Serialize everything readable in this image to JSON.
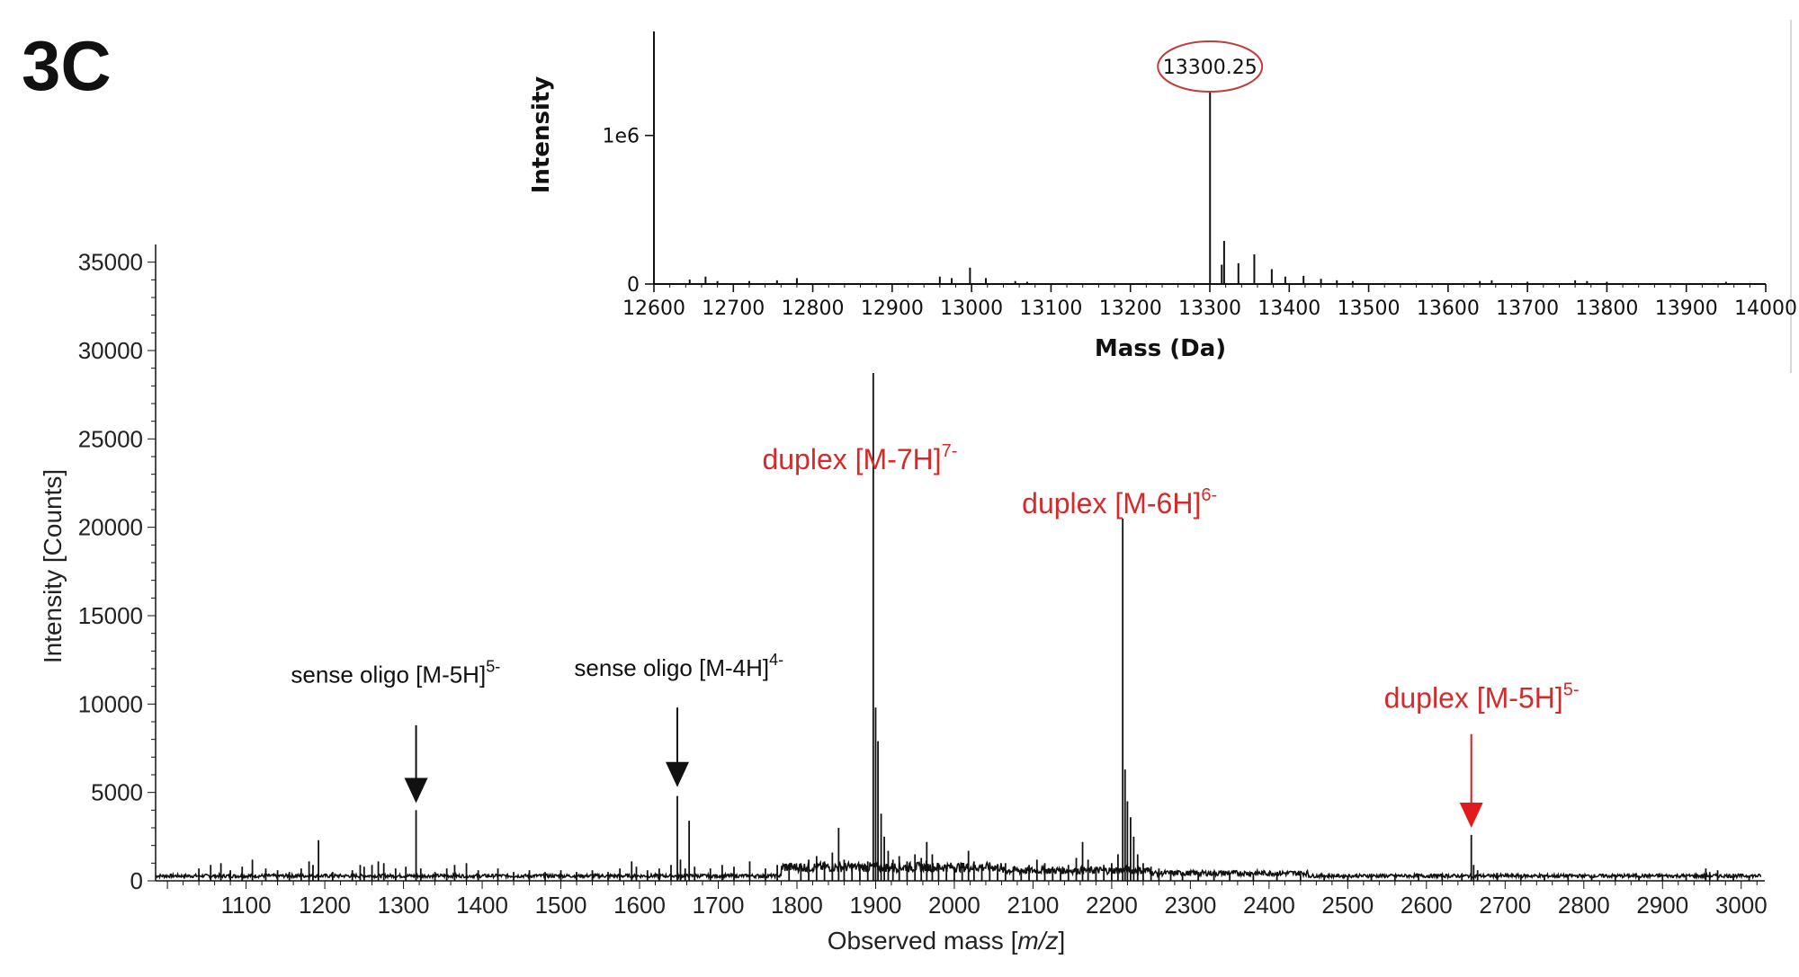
{
  "panel_label": "3C",
  "colors": {
    "annotation_red": "#d62a2a",
    "arrow_red": "#e01b1b",
    "trace": "#111111",
    "axis": "#111111"
  },
  "chart_data": [
    {
      "type": "line",
      "role": "main-spectrum",
      "xlabel": "Observed mass [m/z]",
      "xlabel_plain": "Observed mass [",
      "xlabel_italic": "m/z",
      "xlabel_close": "]",
      "ylabel": "Intensity [Counts]",
      "xlim": [
        985,
        3030
      ],
      "ylim": [
        0,
        36000
      ],
      "x_ticks": [
        1100,
        1200,
        1300,
        1400,
        1500,
        1600,
        1700,
        1800,
        1900,
        2000,
        2100,
        2200,
        2300,
        2400,
        2500,
        2600,
        2700,
        2800,
        2900,
        3000
      ],
      "y_ticks": [
        0,
        5000,
        10000,
        15000,
        20000,
        25000,
        30000,
        35000
      ],
      "grid": false,
      "peaks": [
        {
          "x": 1040,
          "y": 700
        },
        {
          "x": 1055,
          "y": 900
        },
        {
          "x": 1068,
          "y": 1000
        },
        {
          "x": 1080,
          "y": 600
        },
        {
          "x": 1095,
          "y": 800
        },
        {
          "x": 1108,
          "y": 1200
        },
        {
          "x": 1125,
          "y": 700
        },
        {
          "x": 1140,
          "y": 600
        },
        {
          "x": 1155,
          "y": 500
        },
        {
          "x": 1170,
          "y": 700
        },
        {
          "x": 1180,
          "y": 1100
        },
        {
          "x": 1185,
          "y": 900
        },
        {
          "x": 1192,
          "y": 2300
        },
        {
          "x": 1210,
          "y": 500
        },
        {
          "x": 1235,
          "y": 600
        },
        {
          "x": 1245,
          "y": 900
        },
        {
          "x": 1250,
          "y": 800
        },
        {
          "x": 1260,
          "y": 900
        },
        {
          "x": 1268,
          "y": 1100
        },
        {
          "x": 1275,
          "y": 1000
        },
        {
          "x": 1290,
          "y": 700
        },
        {
          "x": 1303,
          "y": 800
        },
        {
          "x": 1316,
          "y": 4000
        },
        {
          "x": 1322,
          "y": 700
        },
        {
          "x": 1340,
          "y": 500
        },
        {
          "x": 1355,
          "y": 700
        },
        {
          "x": 1365,
          "y": 900
        },
        {
          "x": 1380,
          "y": 1000
        },
        {
          "x": 1395,
          "y": 600
        },
        {
          "x": 1420,
          "y": 700
        },
        {
          "x": 1440,
          "y": 500
        },
        {
          "x": 1460,
          "y": 600
        },
        {
          "x": 1480,
          "y": 500
        },
        {
          "x": 1500,
          "y": 600
        },
        {
          "x": 1520,
          "y": 500
        },
        {
          "x": 1540,
          "y": 600
        },
        {
          "x": 1560,
          "y": 500
        },
        {
          "x": 1575,
          "y": 700
        },
        {
          "x": 1590,
          "y": 1100
        },
        {
          "x": 1596,
          "y": 800
        },
        {
          "x": 1610,
          "y": 600
        },
        {
          "x": 1625,
          "y": 700
        },
        {
          "x": 1640,
          "y": 900
        },
        {
          "x": 1648,
          "y": 4800
        },
        {
          "x": 1652,
          "y": 1200
        },
        {
          "x": 1658,
          "y": 700
        },
        {
          "x": 1663,
          "y": 3400
        },
        {
          "x": 1670,
          "y": 800
        },
        {
          "x": 1690,
          "y": 700
        },
        {
          "x": 1705,
          "y": 900
        },
        {
          "x": 1720,
          "y": 800
        },
        {
          "x": 1740,
          "y": 1100
        },
        {
          "x": 1760,
          "y": 700
        },
        {
          "x": 1775,
          "y": 900
        },
        {
          "x": 1790,
          "y": 800
        },
        {
          "x": 1805,
          "y": 1000
        },
        {
          "x": 1815,
          "y": 1200
        },
        {
          "x": 1825,
          "y": 1400
        },
        {
          "x": 1835,
          "y": 1100
        },
        {
          "x": 1845,
          "y": 1600
        },
        {
          "x": 1853,
          "y": 3000
        },
        {
          "x": 1860,
          "y": 1200
        },
        {
          "x": 1870,
          "y": 1000
        },
        {
          "x": 1880,
          "y": 900
        },
        {
          "x": 1890,
          "y": 1100
        },
        {
          "x": 1897,
          "y": 29000
        },
        {
          "x": 1900,
          "y": 9800
        },
        {
          "x": 1903,
          "y": 7900
        },
        {
          "x": 1907,
          "y": 3800
        },
        {
          "x": 1911,
          "y": 2500
        },
        {
          "x": 1916,
          "y": 1700
        },
        {
          "x": 1922,
          "y": 1200
        },
        {
          "x": 1930,
          "y": 1400
        },
        {
          "x": 1940,
          "y": 1100
        },
        {
          "x": 1950,
          "y": 1500
        },
        {
          "x": 1958,
          "y": 1300
        },
        {
          "x": 1965,
          "y": 2200
        },
        {
          "x": 1972,
          "y": 1500
        },
        {
          "x": 1980,
          "y": 1000
        },
        {
          "x": 1990,
          "y": 900
        },
        {
          "x": 2000,
          "y": 800
        },
        {
          "x": 2010,
          "y": 700
        },
        {
          "x": 2018,
          "y": 1700
        },
        {
          "x": 2025,
          "y": 1100
        },
        {
          "x": 2035,
          "y": 900
        },
        {
          "x": 2045,
          "y": 700
        },
        {
          "x": 2055,
          "y": 900
        },
        {
          "x": 2065,
          "y": 1000
        },
        {
          "x": 2075,
          "y": 800
        },
        {
          "x": 2085,
          "y": 700
        },
        {
          "x": 2095,
          "y": 900
        },
        {
          "x": 2105,
          "y": 1200
        },
        {
          "x": 2115,
          "y": 1000
        },
        {
          "x": 2125,
          "y": 800
        },
        {
          "x": 2135,
          "y": 700
        },
        {
          "x": 2145,
          "y": 900
        },
        {
          "x": 2155,
          "y": 1300
        },
        {
          "x": 2163,
          "y": 2200
        },
        {
          "x": 2170,
          "y": 1200
        },
        {
          "x": 2180,
          "y": 800
        },
        {
          "x": 2190,
          "y": 900
        },
        {
          "x": 2200,
          "y": 1000
        },
        {
          "x": 2208,
          "y": 1500
        },
        {
          "x": 2214,
          "y": 20500
        },
        {
          "x": 2217,
          "y": 6300
        },
        {
          "x": 2220,
          "y": 4500
        },
        {
          "x": 2224,
          "y": 3600
        },
        {
          "x": 2228,
          "y": 2500
        },
        {
          "x": 2233,
          "y": 1500
        },
        {
          "x": 2240,
          "y": 1000
        },
        {
          "x": 2250,
          "y": 800
        },
        {
          "x": 2260,
          "y": 700
        },
        {
          "x": 2275,
          "y": 600
        },
        {
          "x": 2290,
          "y": 500
        },
        {
          "x": 2310,
          "y": 500
        },
        {
          "x": 2330,
          "y": 400
        },
        {
          "x": 2350,
          "y": 450
        },
        {
          "x": 2380,
          "y": 400
        },
        {
          "x": 2410,
          "y": 350
        },
        {
          "x": 2440,
          "y": 400
        },
        {
          "x": 2470,
          "y": 350
        },
        {
          "x": 2500,
          "y": 300
        },
        {
          "x": 2530,
          "y": 400
        },
        {
          "x": 2560,
          "y": 350
        },
        {
          "x": 2590,
          "y": 400
        },
        {
          "x": 2620,
          "y": 350
        },
        {
          "x": 2645,
          "y": 400
        },
        {
          "x": 2657,
          "y": 2600
        },
        {
          "x": 2660,
          "y": 900
        },
        {
          "x": 2665,
          "y": 600
        },
        {
          "x": 2690,
          "y": 450
        },
        {
          "x": 2720,
          "y": 350
        },
        {
          "x": 2750,
          "y": 300
        },
        {
          "x": 2780,
          "y": 350
        },
        {
          "x": 2810,
          "y": 300
        },
        {
          "x": 2840,
          "y": 350
        },
        {
          "x": 2870,
          "y": 300
        },
        {
          "x": 2900,
          "y": 350
        },
        {
          "x": 2930,
          "y": 300
        },
        {
          "x": 2955,
          "y": 700
        },
        {
          "x": 2960,
          "y": 500
        },
        {
          "x": 2970,
          "y": 600
        },
        {
          "x": 2990,
          "y": 400
        },
        {
          "x": 3010,
          "y": 300
        }
      ],
      "annotations": [
        {
          "text": "sense oligo [M-5H]",
          "sup": "5-",
          "color": "black",
          "arrow": "black",
          "arrow_x": 1316,
          "arrow_y_top": 8800,
          "arrow_y_tip": 4400,
          "text_x": 1290,
          "text_y": 11200
        },
        {
          "text": "sense oligo [M-4H]",
          "sup": "4-",
          "color": "black",
          "arrow": "black",
          "arrow_x": 1648,
          "arrow_y_top": 9800,
          "arrow_y_tip": 5300,
          "text_x": 1650,
          "text_y": 11600
        },
        {
          "text": "duplex [M-7H]",
          "sup": "7-",
          "color": "red",
          "arrow": "",
          "text_x": 1880,
          "text_y": 23300
        },
        {
          "text": "duplex [M-6H]",
          "sup": "6-",
          "color": "red",
          "arrow": "",
          "text_x": 2210,
          "text_y": 20800
        },
        {
          "text": "duplex [M-5H]",
          "sup": "5-",
          "color": "red",
          "arrow": "red",
          "arrow_x": 2657,
          "arrow_y_top": 8300,
          "arrow_y_tip": 3000,
          "text_x": 2670,
          "text_y": 9800
        }
      ]
    },
    {
      "type": "bar",
      "role": "deconvoluted-inset",
      "xlabel": "Mass (Da)",
      "ylabel": "Intensity",
      "xlim": [
        12600,
        14000
      ],
      "ylim": [
        0,
        1700000
      ],
      "x_ticks": [
        12600,
        12700,
        12800,
        12900,
        13000,
        13100,
        13200,
        13300,
        13400,
        13500,
        13600,
        13700,
        13800,
        13900,
        14000
      ],
      "y_ticks": [
        0,
        1000000
      ],
      "y_tick_labels": [
        "0",
        "1e6"
      ],
      "grid": false,
      "highlight": {
        "x": 13300.25,
        "label": "13300.25",
        "color": "#c23b3b"
      },
      "sticks": [
        {
          "x": 12645,
          "y": 30000
        },
        {
          "x": 12665,
          "y": 50000
        },
        {
          "x": 12680,
          "y": 20000
        },
        {
          "x": 12720,
          "y": 20000
        },
        {
          "x": 12755,
          "y": 25000
        },
        {
          "x": 12780,
          "y": 40000
        },
        {
          "x": 12960,
          "y": 50000
        },
        {
          "x": 12975,
          "y": 40000
        },
        {
          "x": 12998,
          "y": 110000
        },
        {
          "x": 13018,
          "y": 40000
        },
        {
          "x": 13055,
          "y": 20000
        },
        {
          "x": 13070,
          "y": 15000
        },
        {
          "x": 13300.25,
          "y": 1300000
        },
        {
          "x": 13315,
          "y": 130000
        },
        {
          "x": 13318,
          "y": 290000
        },
        {
          "x": 13336,
          "y": 140000
        },
        {
          "x": 13356,
          "y": 200000
        },
        {
          "x": 13378,
          "y": 100000
        },
        {
          "x": 13395,
          "y": 50000
        },
        {
          "x": 13418,
          "y": 55000
        },
        {
          "x": 13440,
          "y": 35000
        },
        {
          "x": 13460,
          "y": 25000
        },
        {
          "x": 13480,
          "y": 20000
        },
        {
          "x": 13640,
          "y": 20000
        },
        {
          "x": 13655,
          "y": 25000
        },
        {
          "x": 13700,
          "y": 15000
        },
        {
          "x": 13760,
          "y": 25000
        },
        {
          "x": 13775,
          "y": 20000
        },
        {
          "x": 13800,
          "y": 15000
        },
        {
          "x": 13950,
          "y": 15000
        }
      ]
    }
  ]
}
